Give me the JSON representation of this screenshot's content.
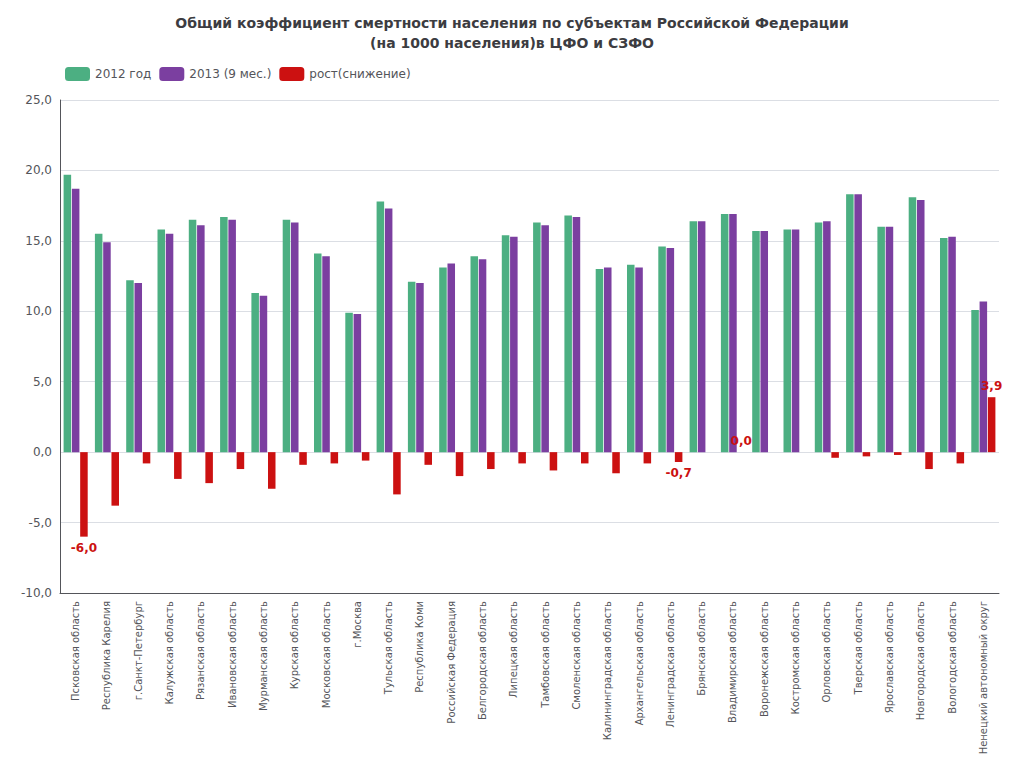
{
  "chart_data": {
    "type": "bar",
    "title": "Общий коэффициент смертности населения по субъектам Российской Федерации\n(на 1000 населения)в ЦФО и СЗФО",
    "categories": [
      "Псковская область",
      "Республика Карелия",
      "г.Санкт-Петербург",
      "Калужская область",
      "Рязанская область",
      "Ивановская область",
      "Мурманская область",
      "Курская область",
      "Московская область",
      "г.Москва",
      "Тульская область",
      "Республика Коми",
      "Российская Федерация",
      "Белгородская область",
      "Липецкая область",
      "Тамбовская область",
      "Смоленская область",
      "Калининградская область",
      "Архангельская область",
      "Ленинградская область",
      "Брянская область",
      "Владимирская область",
      "Воронежская область",
      "Костромская область",
      "Орловская область",
      "Тверская область",
      "Ярославская область",
      "Новгородская область",
      "Вологодская область",
      "Ненецкий автономный округ"
    ],
    "series": [
      {
        "name": "2012 год",
        "color": "#4CAF82",
        "values": [
          19.7,
          15.5,
          12.2,
          15.8,
          16.5,
          16.7,
          11.3,
          16.5,
          14.1,
          9.9,
          17.8,
          12.1,
          13.1,
          13.9,
          15.4,
          16.3,
          16.8,
          13.0,
          13.3,
          14.6,
          16.4,
          16.9,
          15.7,
          15.8,
          16.3,
          18.3,
          16.0,
          18.1,
          15.2,
          10.1
        ]
      },
      {
        "name": "2013 (9 мес.)",
        "color": "#7B3FA0",
        "values": [
          18.7,
          14.9,
          12.0,
          15.5,
          16.1,
          16.5,
          11.1,
          16.3,
          13.9,
          9.8,
          17.3,
          12.0,
          13.4,
          13.7,
          15.3,
          16.1,
          16.7,
          13.1,
          13.1,
          14.5,
          16.4,
          16.9,
          15.7,
          15.8,
          16.4,
          18.3,
          16.0,
          17.9,
          15.3,
          10.7
        ]
      },
      {
        "name": "рост(снижение)",
        "color": "#CC1111",
        "values": [
          -6.0,
          -3.8,
          -0.8,
          -1.9,
          -2.2,
          -1.2,
          -2.6,
          -0.9,
          -0.8,
          -0.6,
          -3.0,
          -0.9,
          -1.7,
          -1.2,
          -0.8,
          -1.3,
          -0.8,
          -1.5,
          -0.8,
          -0.7,
          0.0,
          0.0,
          0.0,
          0.0,
          -0.4,
          -0.3,
          -0.2,
          -1.2,
          -0.8,
          3.9
        ]
      }
    ],
    "ylim": [
      -10.0,
      25.0
    ],
    "yticks": [
      {
        "value": -10,
        "label": "-10,0"
      },
      {
        "value": -5,
        "label": "-5,0"
      },
      {
        "value": 0,
        "label": "0,0"
      },
      {
        "value": 5,
        "label": "5,0"
      },
      {
        "value": 10,
        "label": "10,0"
      },
      {
        "value": 15,
        "label": "15,0"
      },
      {
        "value": 20,
        "label": "20,0"
      },
      {
        "value": 25,
        "label": "25,0"
      }
    ],
    "grid": true,
    "legend": "upper left",
    "annotations": [
      {
        "text": "0,0",
        "category": "Владимирская область",
        "series": "рост(снижение)"
      },
      {
        "text": "3,9",
        "category": "Ненецкий автономный округ",
        "series": "рост(снижение)"
      },
      {
        "text": "-0,7",
        "category": "Ленинградская область",
        "series": "рост(снижение)"
      },
      {
        "text": "-6,0",
        "category": "Псковская область",
        "series": "рост(снижение)"
      }
    ]
  }
}
